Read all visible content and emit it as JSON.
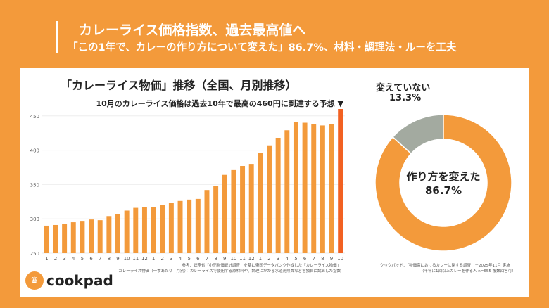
{
  "header": {
    "title": "カレーライス価格指数、過去最高値へ",
    "subtitle": "「この1年で、カレーの作り方について変えた」86.7%、材料・調理法・ルーを工夫"
  },
  "chart_data": [
    {
      "type": "bar",
      "title": "「カレーライス物価」推移（全国、月別推移）",
      "annotation": "10月のカレーライス価格は過去10年で最高の460円に到達する予想 ▼",
      "categories": [
        "1",
        "2",
        "3",
        "4",
        "5",
        "6",
        "7",
        "8",
        "9",
        "10",
        "11",
        "12",
        "1",
        "2",
        "3",
        "4",
        "5",
        "6",
        "7",
        "8",
        "9",
        "10",
        "11",
        "12",
        "1",
        "2",
        "3",
        "4",
        "5",
        "6",
        "7",
        "8",
        "9",
        "10"
      ],
      "values": [
        290,
        291,
        293,
        295,
        297,
        299,
        298,
        304,
        307,
        312,
        316,
        317,
        317,
        320,
        323,
        326,
        328,
        329,
        342,
        348,
        364,
        371,
        377,
        380,
        396,
        407,
        418,
        429,
        441,
        440,
        438,
        436,
        438,
        460
      ],
      "ylim": [
        250,
        460
      ],
      "yticks": [
        250,
        300,
        350,
        400,
        450
      ],
      "grid": true,
      "colors": {
        "bar": "#F39A3B",
        "highlight": "#F26122"
      },
      "notes": [
        "参考：総務省「小売物価統計調査」を基に帝国データバンク作成した「カレーライス物価」",
        "カレーライス物価（一食あたり　月別）：カレーライスで使用する原材料や、調理にかかる水道光熱費などを独自に試算した指数"
      ]
    },
    {
      "type": "pie",
      "slices": [
        {
          "label": "作り方を変えた",
          "value": 86.7,
          "display": "86.7%",
          "color": "#F39A3B"
        },
        {
          "label": "変えていない",
          "value": 13.3,
          "display": "13.3%",
          "color": "#A3AAA0"
        }
      ],
      "source": [
        "クックパッド：「物価高におけるカレーに関する調査」－2025年11月 実施",
        "（半年に1回以上カレーを作る人 n=655 複数回答可）"
      ]
    }
  ],
  "logo": {
    "text": "cookpad"
  }
}
